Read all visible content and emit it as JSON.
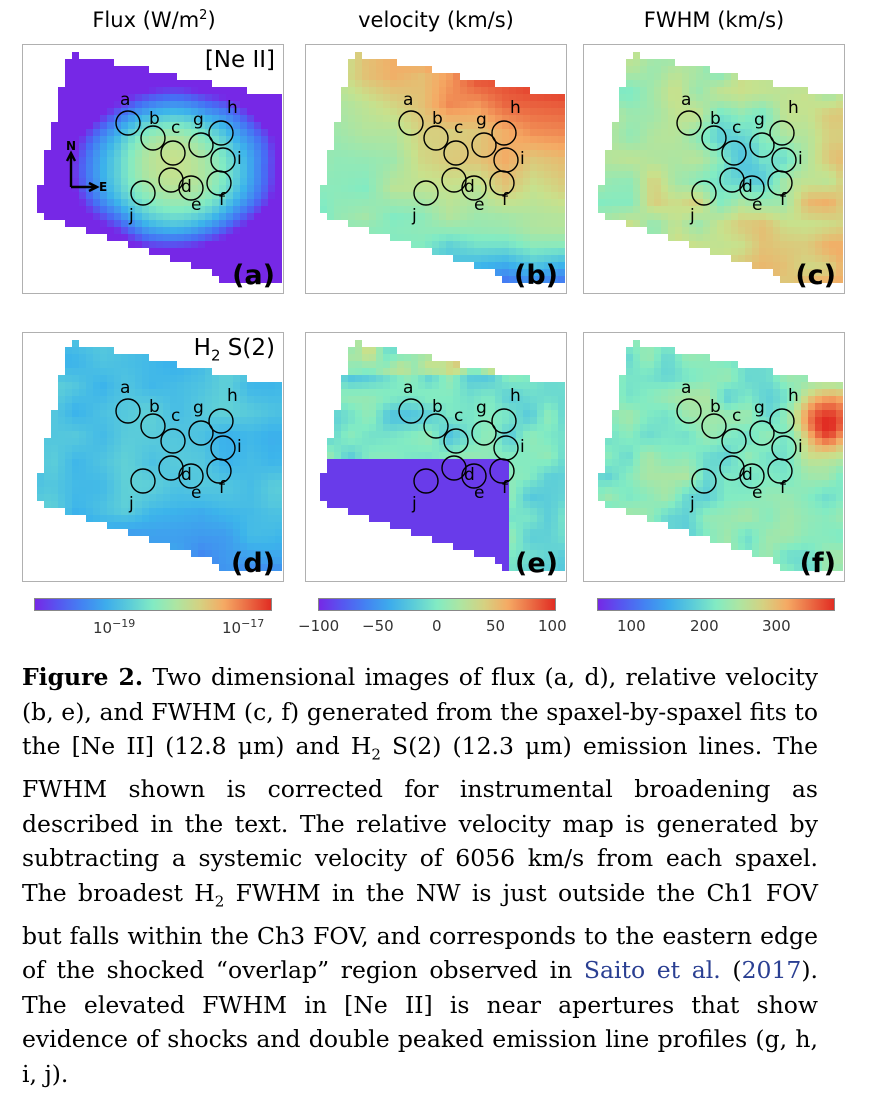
{
  "columns": {
    "flux": "Flux (W/m",
    "flux_sup": "2",
    "flux_end": ")",
    "velocity": "velocity (km/s)",
    "fwhm": "FWHM (km/s)"
  },
  "row_labels": {
    "neii": "[Ne II]",
    "h2_base": "H",
    "h2_sub": "2",
    "h2_end": " S(2)"
  },
  "panels": [
    "(a)",
    "(b)",
    "(c)",
    "(d)",
    "(e)",
    "(f)"
  ],
  "compass": {
    "north": "N",
    "east": "E"
  },
  "apertures": [
    "a",
    "b",
    "c",
    "d",
    "e",
    "f",
    "g",
    "h",
    "i",
    "j"
  ],
  "colorbars": {
    "flux": {
      "ticks": [
        "10",
        "10"
      ],
      "exponents": [
        "−19",
        "−17"
      ]
    },
    "velocity": {
      "ticks": [
        "−100",
        "−50",
        "0",
        "50",
        "100"
      ],
      "range": [
        -110,
        110
      ]
    },
    "fwhm": {
      "ticks": [
        "100",
        "200",
        "300"
      ],
      "range": [
        50,
        380
      ]
    }
  },
  "colormap": "rainbow (purple-blue-cyan-green-yellow-orange-red)",
  "caption": {
    "figure": "Figure 2.",
    "text1": " Two dimensional images of flux (a, d), relative velocity (b, e), and FWHM (c, f) generated from the spaxel-by-spaxel fits to the [Ne II] (12.8 μm) and H",
    "h2sub1": "2",
    "text2": " S(2) (12.3 μm) emission lines. The FWHM shown is corrected for instrumental broadening as described in the text. The relative velocity map is generated by subtracting a systemic velocity of 6056 km/s from each spaxel. The broadest H",
    "h2sub2": "2",
    "text3": " FWHM in the NW is just outside the Ch1 FOV but falls within the Ch3 FOV, and corresponds to the eastern edge of the shocked “overlap” region observed in ",
    "cite_author": "Saito et al.",
    "text4": " (",
    "cite_year": "2017",
    "text5": "). The elevated FWHM in [Ne II] is near apertures that show evidence of shocks and double peaked emission line profiles (g, h, i, j)."
  }
}
